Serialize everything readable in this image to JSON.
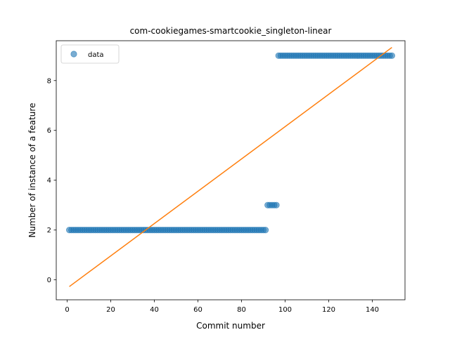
{
  "chart_data": {
    "type": "scatter",
    "title": "com-cookiegames-smartcookie_singleton-linear",
    "xlabel": "Commit number",
    "ylabel": "Number of instance of a feature",
    "xlim": [
      -5,
      155
    ],
    "ylim": [
      -0.8,
      9.6
    ],
    "xticks": [
      0,
      20,
      40,
      60,
      80,
      100,
      120,
      140
    ],
    "yticks": [
      0,
      2,
      4,
      6,
      8
    ],
    "grid": false,
    "legend": {
      "position": "top-left",
      "entries": [
        "data"
      ]
    },
    "series": [
      {
        "name": "data",
        "kind": "points",
        "color": "#1f77b4",
        "segments": [
          {
            "x_from": 1,
            "x_to": 91,
            "y": 2
          },
          {
            "x_from": 92,
            "x_to": 96,
            "y": 3
          },
          {
            "x_from": 97,
            "x_to": 149,
            "y": 9
          }
        ]
      },
      {
        "kind": "line",
        "color": "#ff7f0e",
        "x": [
          1,
          149
        ],
        "y": [
          -0.27,
          9.33
        ]
      }
    ]
  }
}
